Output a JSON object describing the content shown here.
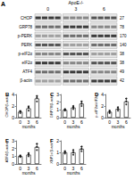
{
  "blot": {
    "panel": "A",
    "header": "ApoE-/-",
    "groups": [
      "0",
      "3",
      "6"
    ],
    "rows": [
      {
        "label": "CHOP",
        "kda": "27"
      },
      {
        "label": "GRP78",
        "kda": "78"
      },
      {
        "label": "p-PERK",
        "kda": "170"
      },
      {
        "label": "PERK",
        "kda": "140"
      },
      {
        "label": "p-eIF2α",
        "kda": "38"
      },
      {
        "label": "eIF2α",
        "kda": "38"
      },
      {
        "label": "ATF4",
        "kda": "49"
      },
      {
        "label": "β-actin",
        "kda": "42"
      }
    ]
  },
  "chart_data": [
    {
      "type": "bar",
      "title": "B",
      "categories": [
        "0",
        "3",
        "6"
      ],
      "x_label": "months",
      "y_label": "CHOP/β-actin",
      "values": [
        1,
        1.6,
        3.3
      ],
      "errors": [
        0.2,
        0.4,
        0.5
      ],
      "points": [
        [
          0.8,
          1.1,
          1.1
        ],
        [
          1.2,
          1.7,
          1.9
        ],
        [
          2.8,
          3.4,
          3.7
        ]
      ],
      "color": "#ffffff",
      "ylim": [
        0,
        4
      ],
      "yticks": [
        0,
        2,
        4
      ]
    },
    {
      "type": "bar",
      "title": "C",
      "categories": [
        "0",
        "3",
        "6"
      ],
      "x_label": "months",
      "y_label": "GRP78/β-actin",
      "values": [
        1,
        1.3,
        1.8
      ],
      "errors": [
        0.1,
        0.2,
        0.3
      ],
      "points": [
        [
          0.9,
          1,
          1.1
        ],
        [
          1.1,
          1.3,
          1.5
        ],
        [
          1.5,
          1.8,
          2.1
        ]
      ],
      "color": "#ffffff",
      "ylim": [
        0,
        3
      ],
      "yticks": [
        0,
        1,
        2,
        3
      ]
    },
    {
      "type": "bar",
      "title": "D",
      "categories": [
        "0",
        "3",
        "6"
      ],
      "x_label": "months",
      "y_label": "p-eIF2α/eIF2α",
      "values": [
        1,
        1.5,
        2.8
      ],
      "errors": [
        0.2,
        0.3,
        0.5
      ],
      "points": [
        [
          0.8,
          1,
          1.2
        ],
        [
          1.2,
          1.5,
          1.8
        ],
        [
          2.3,
          2.8,
          3.3
        ]
      ],
      "color": "#ffffff",
      "ylim": [
        0,
        4
      ],
      "yticks": [
        0,
        2,
        4
      ]
    },
    {
      "type": "bar",
      "title": "E",
      "categories": [
        "0",
        "3",
        "6"
      ],
      "x_label": "months",
      "y_label": "ATF4/β-actin",
      "values": [
        1,
        1.2,
        2.2
      ],
      "errors": [
        0.1,
        0.2,
        0.4
      ],
      "points": [
        [
          0.9,
          1,
          1.1
        ],
        [
          1,
          1.2,
          1.4
        ],
        [
          1.8,
          2.2,
          2.6
        ]
      ],
      "color": "#ffffff",
      "ylim": [
        0,
        3
      ],
      "yticks": [
        0,
        1,
        2,
        3
      ]
    },
    {
      "type": "bar",
      "title": "F",
      "categories": [
        "0",
        "3",
        "6"
      ],
      "x_label": "months",
      "y_label": "XBP1s/β-actin",
      "values": [
        1,
        1,
        1.3
      ],
      "errors": [
        0.1,
        0.2,
        0.2
      ],
      "points": [
        [
          0.9,
          1,
          1.1
        ],
        [
          0.8,
          1,
          1.2
        ],
        [
          1.1,
          1.3,
          1.5
        ]
      ],
      "color": "#ffffff",
      "ylim": [
        0,
        2
      ],
      "yticks": [
        0,
        1,
        2
      ]
    }
  ]
}
